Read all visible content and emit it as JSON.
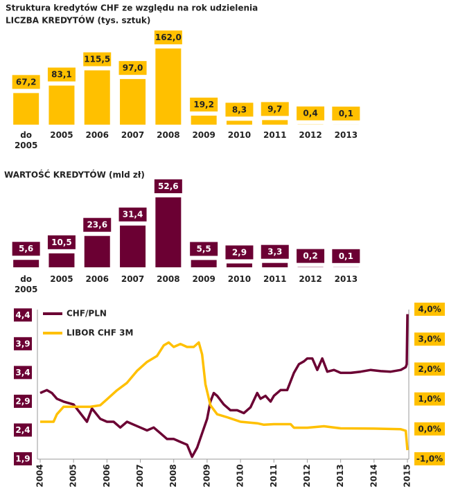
{
  "chart_data": [
    {
      "type": "bar",
      "title": "Struktura kredytów CHF ze względu na rok udzielenia",
      "subtitle": "LICZBA KREDYTÓW  (tys. sztuk)",
      "categories": [
        "do 2005",
        "2005",
        "2006",
        "2007",
        "2008",
        "2009",
        "2010",
        "2011",
        "2012",
        "2013"
      ],
      "values": [
        67.2,
        83.1,
        115.5,
        97.0,
        162.0,
        19.2,
        8.3,
        9.7,
        0.4,
        0.1
      ],
      "value_labels": [
        "67,2",
        "83,1",
        "115,5",
        "97,0",
        "162,0",
        "19,2",
        "8,3",
        "9,7",
        "0,4",
        "0,1"
      ],
      "color": "#FFC000"
    },
    {
      "type": "bar",
      "title": "WARTOŚĆ  KREDYTÓW  (mld  zł)",
      "categories": [
        "do 2005",
        "2005",
        "2006",
        "2007",
        "2008",
        "2009",
        "2010",
        "2011",
        "2012",
        "2013"
      ],
      "values": [
        5.6,
        10.5,
        23.6,
        31.4,
        52.6,
        5.5,
        2.9,
        3.3,
        0.2,
        0.1
      ],
      "value_labels": [
        "5,6",
        "10,5",
        "23,6",
        "31,4",
        "52,6",
        "5,5",
        "2,9",
        "3,3",
        "0,2",
        "0,1"
      ],
      "color": "#6B0033"
    },
    {
      "type": "line",
      "legend": "upper left",
      "xlim": [
        2004,
        2015
      ],
      "xticks": [
        2004,
        2005,
        2006,
        2007,
        2008,
        2009,
        2010,
        2011,
        2012,
        2013,
        2014,
        2015
      ],
      "ylim": [
        1.9,
        4.5
      ],
      "yticks": [
        {
          "value": 1.9,
          "label": "1,9"
        },
        {
          "value": 2.4,
          "label": "2,4"
        },
        {
          "value": 2.9,
          "label": "2,9"
        },
        {
          "value": 3.4,
          "label": "3,4"
        },
        {
          "value": 3.9,
          "label": "3,9"
        },
        {
          "value": 4.4,
          "label": "4,4"
        }
      ],
      "y2lim": [
        -1,
        4
      ],
      "y2ticks": [
        {
          "value": -1,
          "label": "-1,0%"
        },
        {
          "value": 0,
          "label": "0,0%"
        },
        {
          "value": 1,
          "label": "1,0%"
        },
        {
          "value": 2,
          "label": "2,0%"
        },
        {
          "value": 3,
          "label": "3,0%"
        },
        {
          "value": 4,
          "label": "4,0%"
        }
      ],
      "series": [
        {
          "name": "CHF/PLN",
          "color": "#6B0033",
          "x": [
            2004.0,
            2004.2,
            2004.35,
            2004.5,
            2004.7,
            2005.0,
            2005.2,
            2005.4,
            2005.55,
            2005.8,
            2006.0,
            2006.2,
            2006.4,
            2006.6,
            2006.8,
            2007.0,
            2007.2,
            2007.4,
            2007.6,
            2007.8,
            2008.0,
            2008.2,
            2008.4,
            2008.55,
            2008.7,
            2008.85,
            2009.0,
            2009.1,
            2009.2,
            2009.3,
            2009.5,
            2009.7,
            2009.9,
            2010.1,
            2010.3,
            2010.5,
            2010.6,
            2010.75,
            2010.9,
            2011.0,
            2011.2,
            2011.4,
            2011.6,
            2011.75,
            2011.9,
            2012.0,
            2012.15,
            2012.3,
            2012.45,
            2012.6,
            2012.8,
            2013.0,
            2013.3,
            2013.6,
            2013.9,
            2014.2,
            2014.5,
            2014.8,
            2014.95,
            2014.98,
            2015.0
          ],
          "values": [
            3.05,
            3.1,
            3.05,
            2.95,
            2.9,
            2.85,
            2.7,
            2.55,
            2.78,
            2.6,
            2.55,
            2.55,
            2.45,
            2.55,
            2.5,
            2.45,
            2.4,
            2.45,
            2.35,
            2.25,
            2.25,
            2.2,
            2.15,
            1.94,
            2.1,
            2.35,
            2.6,
            2.9,
            3.05,
            3.0,
            2.85,
            2.75,
            2.75,
            2.7,
            2.8,
            3.05,
            2.95,
            3.0,
            2.9,
            3.0,
            3.1,
            3.1,
            3.4,
            3.55,
            3.6,
            3.65,
            3.65,
            3.45,
            3.65,
            3.42,
            3.45,
            3.4,
            3.4,
            3.42,
            3.45,
            3.43,
            3.42,
            3.45,
            3.5,
            3.55,
            4.42
          ]
        },
        {
          "name": "LIBOR CHF 3M",
          "color": "#FFC000",
          "axis": "y2",
          "x": [
            2004.0,
            2004.4,
            2004.5,
            2004.7,
            2005.0,
            2005.5,
            2005.8,
            2006.0,
            2006.3,
            2006.6,
            2006.9,
            2007.2,
            2007.5,
            2007.7,
            2007.85,
            2008.0,
            2008.2,
            2008.4,
            2008.6,
            2008.75,
            2008.85,
            2008.95,
            2009.1,
            2009.3,
            2009.6,
            2010.0,
            2010.5,
            2010.7,
            2011.0,
            2011.5,
            2011.6,
            2011.8,
            2012.0,
            2012.5,
            2013.0,
            2014.0,
            2014.8,
            2014.95,
            2015.0
          ],
          "values": [
            0.25,
            0.25,
            0.5,
            0.75,
            0.75,
            0.75,
            0.8,
            1.0,
            1.3,
            1.55,
            1.95,
            2.25,
            2.45,
            2.8,
            2.9,
            2.75,
            2.85,
            2.75,
            2.75,
            2.9,
            2.5,
            1.5,
            0.8,
            0.5,
            0.4,
            0.25,
            0.2,
            0.15,
            0.17,
            0.17,
            0.05,
            0.05,
            0.05,
            0.1,
            0.03,
            0.02,
            0.0,
            -0.05,
            -0.7
          ]
        }
      ]
    }
  ]
}
